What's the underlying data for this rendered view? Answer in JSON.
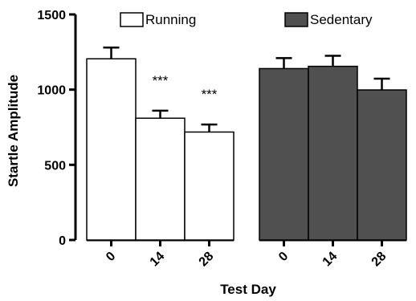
{
  "chart_data": {
    "type": "bar",
    "ylabel": "Startle Amplitude",
    "xlabel": "Test Day",
    "ylim": [
      0,
      1500
    ],
    "yticks": [
      "0",
      "500",
      "1000",
      "1500"
    ],
    "legend_placement": "top",
    "grid": false,
    "series": [
      {
        "name": "Running",
        "color": "#ffffff",
        "categories": [
          "0",
          "14",
          "28"
        ],
        "values": [
          1205,
          810,
          718
        ],
        "errors": [
          75,
          50,
          50
        ],
        "annotations": [
          "",
          "***",
          "***"
        ]
      },
      {
        "name": "Sedentary",
        "color": "#505050",
        "categories": [
          "0",
          "14",
          "28"
        ],
        "values": [
          1140,
          1155,
          998
        ],
        "errors": [
          70,
          70,
          75
        ],
        "annotations": [
          "",
          "",
          ""
        ]
      }
    ]
  }
}
